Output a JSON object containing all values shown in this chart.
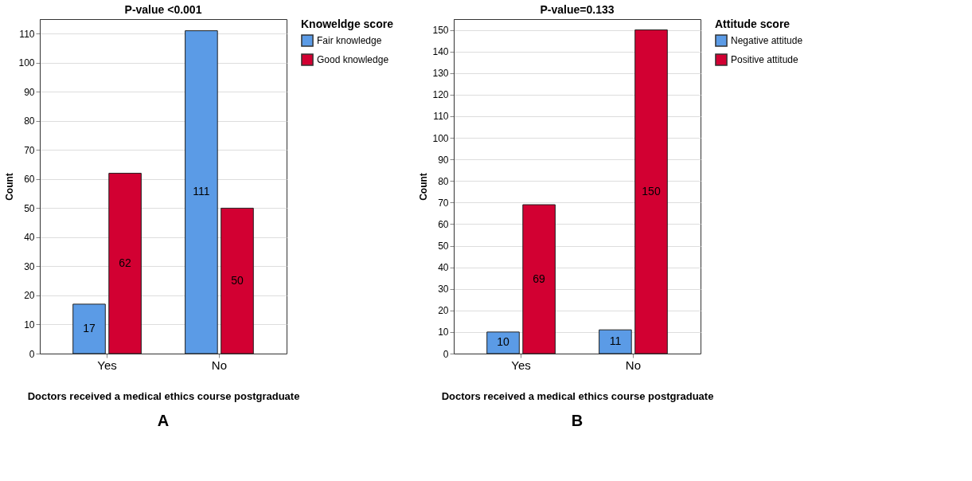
{
  "chart_data": [
    {
      "type": "bar",
      "title": "P-value <0.001",
      "xlabel": "Doctors received a medical ethics course postgraduate",
      "ylabel": "Count",
      "legend_title": "Knoweldge score",
      "categories": [
        "Yes",
        "No"
      ],
      "series": [
        {
          "name": "Fair knowledge",
          "color": "#5b9be6",
          "values": [
            17,
            111
          ]
        },
        {
          "name": "Good knowledge",
          "color": "#d20032",
          "values": [
            62,
            50
          ]
        }
      ],
      "ylim": [
        0,
        115
      ],
      "yticks": [
        0,
        10,
        20,
        30,
        40,
        50,
        60,
        70,
        80,
        90,
        100,
        110
      ],
      "grid": "y",
      "legend": "top right",
      "data_labels": true,
      "annotations": [
        "A"
      ]
    },
    {
      "type": "bar",
      "title": "P-value=0.133",
      "xlabel": "Doctors received a medical ethics course postgraduate",
      "ylabel": "Count",
      "legend_title": "Attitude score",
      "categories": [
        "Yes",
        "No"
      ],
      "series": [
        {
          "name": "Negative attitude",
          "color": "#5b9be6",
          "values": [
            10,
            11
          ]
        },
        {
          "name": "Positive attitude",
          "color": "#d20032",
          "values": [
            69,
            150
          ]
        }
      ],
      "ylim": [
        0,
        155
      ],
      "yticks": [
        0,
        10,
        20,
        30,
        40,
        50,
        60,
        70,
        80,
        90,
        100,
        110,
        120,
        130,
        140,
        150
      ],
      "grid": "y",
      "legend": "top right",
      "data_labels": true,
      "annotations": [
        "B"
      ]
    }
  ]
}
